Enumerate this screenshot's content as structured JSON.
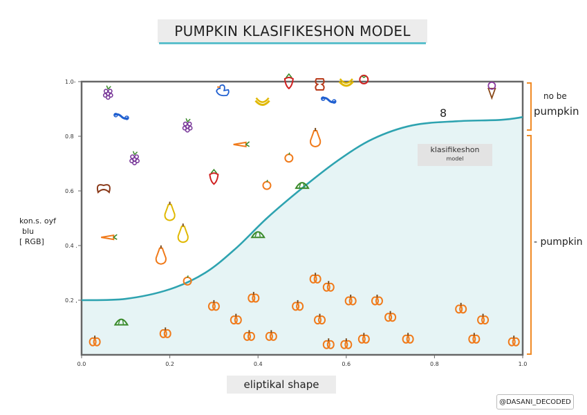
{
  "title": "PUMPKIN KLASIFIKESHON MODEL",
  "x_axis_label": "eliptikal shape",
  "y_axis_label": [
    "kon.s. oyf",
    "blu",
    "[ RGB]"
  ],
  "bracket_labels": {
    "not_pumpkin_line1": "no be",
    "not_pumpkin_line2": "pumpkin",
    "pumpkin": "- pumpkin"
  },
  "curve_label": {
    "line1": "klasifikeshon",
    "line2": "model"
  },
  "credit": "@DASANI_DECODED",
  "stray_glyph": "8",
  "colors": {
    "curve": "#2ea3b0",
    "region_fill": "#e6f4f5",
    "pumpkin_orange": "#f07a1a",
    "bracket": "#f08a24"
  },
  "chart_data": {
    "type": "scatter",
    "xlim": [
      0.0,
      1.0
    ],
    "ylim": [
      0.0,
      1.0
    ],
    "x_ticks": [
      {
        "v": 0.0,
        "label": "0.0"
      },
      {
        "v": 0.2,
        "label": "0.2"
      },
      {
        "v": 0.4,
        "label": "0.4"
      },
      {
        "v": 0.6,
        "label": "0.6"
      },
      {
        "v": 0.8,
        "label": "0.8"
      },
      {
        "v": 1.0,
        "label": "1.0"
      }
    ],
    "y_ticks": [
      {
        "v": 0.2,
        "label": "0.2 ,"
      },
      {
        "v": 0.4,
        "label": "0.4 ."
      },
      {
        "v": 0.6,
        "label": "0.6"
      },
      {
        "v": 0.8,
        "label": "0.8"
      },
      {
        "v": 1.0,
        "label": "1.0-"
      }
    ],
    "curve": [
      [
        0.0,
        0.2
      ],
      [
        0.1,
        0.205
      ],
      [
        0.2,
        0.24
      ],
      [
        0.28,
        0.3
      ],
      [
        0.35,
        0.39
      ],
      [
        0.42,
        0.5
      ],
      [
        0.5,
        0.61
      ],
      [
        0.58,
        0.71
      ],
      [
        0.66,
        0.79
      ],
      [
        0.75,
        0.84
      ],
      [
        0.85,
        0.855
      ],
      [
        0.95,
        0.86
      ],
      [
        1.0,
        0.87
      ]
    ],
    "series": [
      {
        "name": "not pumpkin",
        "points": [
          {
            "x": 0.06,
            "y": 0.96,
            "icon": "grapes"
          },
          {
            "x": 0.09,
            "y": 0.87,
            "icon": "blue-candy"
          },
          {
            "x": 0.12,
            "y": 0.72,
            "icon": "grapes"
          },
          {
            "x": 0.05,
            "y": 0.61,
            "icon": "pretzel"
          },
          {
            "x": 0.06,
            "y": 0.43,
            "icon": "carrot"
          },
          {
            "x": 0.2,
            "y": 0.52,
            "icon": "yellow-squash"
          },
          {
            "x": 0.23,
            "y": 0.44,
            "icon": "yellow-squash"
          },
          {
            "x": 0.18,
            "y": 0.36,
            "icon": "orange-gourd"
          },
          {
            "x": 0.24,
            "y": 0.84,
            "icon": "grapes"
          },
          {
            "x": 0.32,
            "y": 0.97,
            "icon": "duck"
          },
          {
            "x": 0.36,
            "y": 0.77,
            "icon": "carrot"
          },
          {
            "x": 0.3,
            "y": 0.65,
            "icon": "strawberry"
          },
          {
            "x": 0.41,
            "y": 0.92,
            "icon": "banana"
          },
          {
            "x": 0.47,
            "y": 1.0,
            "icon": "strawberry"
          },
          {
            "x": 0.54,
            "y": 0.99,
            "icon": "apple-core"
          },
          {
            "x": 0.56,
            "y": 0.93,
            "icon": "blue-candy"
          },
          {
            "x": 0.6,
            "y": 0.99,
            "icon": "banana"
          },
          {
            "x": 0.64,
            "y": 1.01,
            "icon": "tomato"
          },
          {
            "x": 0.53,
            "y": 0.79,
            "icon": "orange-gourd"
          },
          {
            "x": 0.47,
            "y": 0.72,
            "icon": "orange"
          },
          {
            "x": 0.42,
            "y": 0.62,
            "icon": "orange"
          },
          {
            "x": 0.5,
            "y": 0.62,
            "icon": "green-melon"
          },
          {
            "x": 0.4,
            "y": 0.44,
            "icon": "green-melon"
          },
          {
            "x": 0.09,
            "y": 0.12,
            "icon": "green-melon"
          },
          {
            "x": 0.24,
            "y": 0.27,
            "icon": "orange"
          },
          {
            "x": 0.93,
            "y": 0.97,
            "icon": "ice-cream"
          }
        ]
      },
      {
        "name": "pumpkin",
        "points": [
          {
            "x": 0.03,
            "y": 0.05
          },
          {
            "x": 0.19,
            "y": 0.08
          },
          {
            "x": 0.3,
            "y": 0.18
          },
          {
            "x": 0.35,
            "y": 0.13
          },
          {
            "x": 0.39,
            "y": 0.21
          },
          {
            "x": 0.38,
            "y": 0.07
          },
          {
            "x": 0.43,
            "y": 0.07
          },
          {
            "x": 0.49,
            "y": 0.18
          },
          {
            "x": 0.53,
            "y": 0.28
          },
          {
            "x": 0.56,
            "y": 0.25
          },
          {
            "x": 0.54,
            "y": 0.13
          },
          {
            "x": 0.56,
            "y": 0.04
          },
          {
            "x": 0.6,
            "y": 0.04
          },
          {
            "x": 0.61,
            "y": 0.2
          },
          {
            "x": 0.64,
            "y": 0.06
          },
          {
            "x": 0.67,
            "y": 0.2
          },
          {
            "x": 0.7,
            "y": 0.14
          },
          {
            "x": 0.74,
            "y": 0.06
          },
          {
            "x": 0.86,
            "y": 0.17
          },
          {
            "x": 0.89,
            "y": 0.06
          },
          {
            "x": 0.91,
            "y": 0.13
          },
          {
            "x": 0.98,
            "y": 0.05
          }
        ]
      }
    ]
  }
}
